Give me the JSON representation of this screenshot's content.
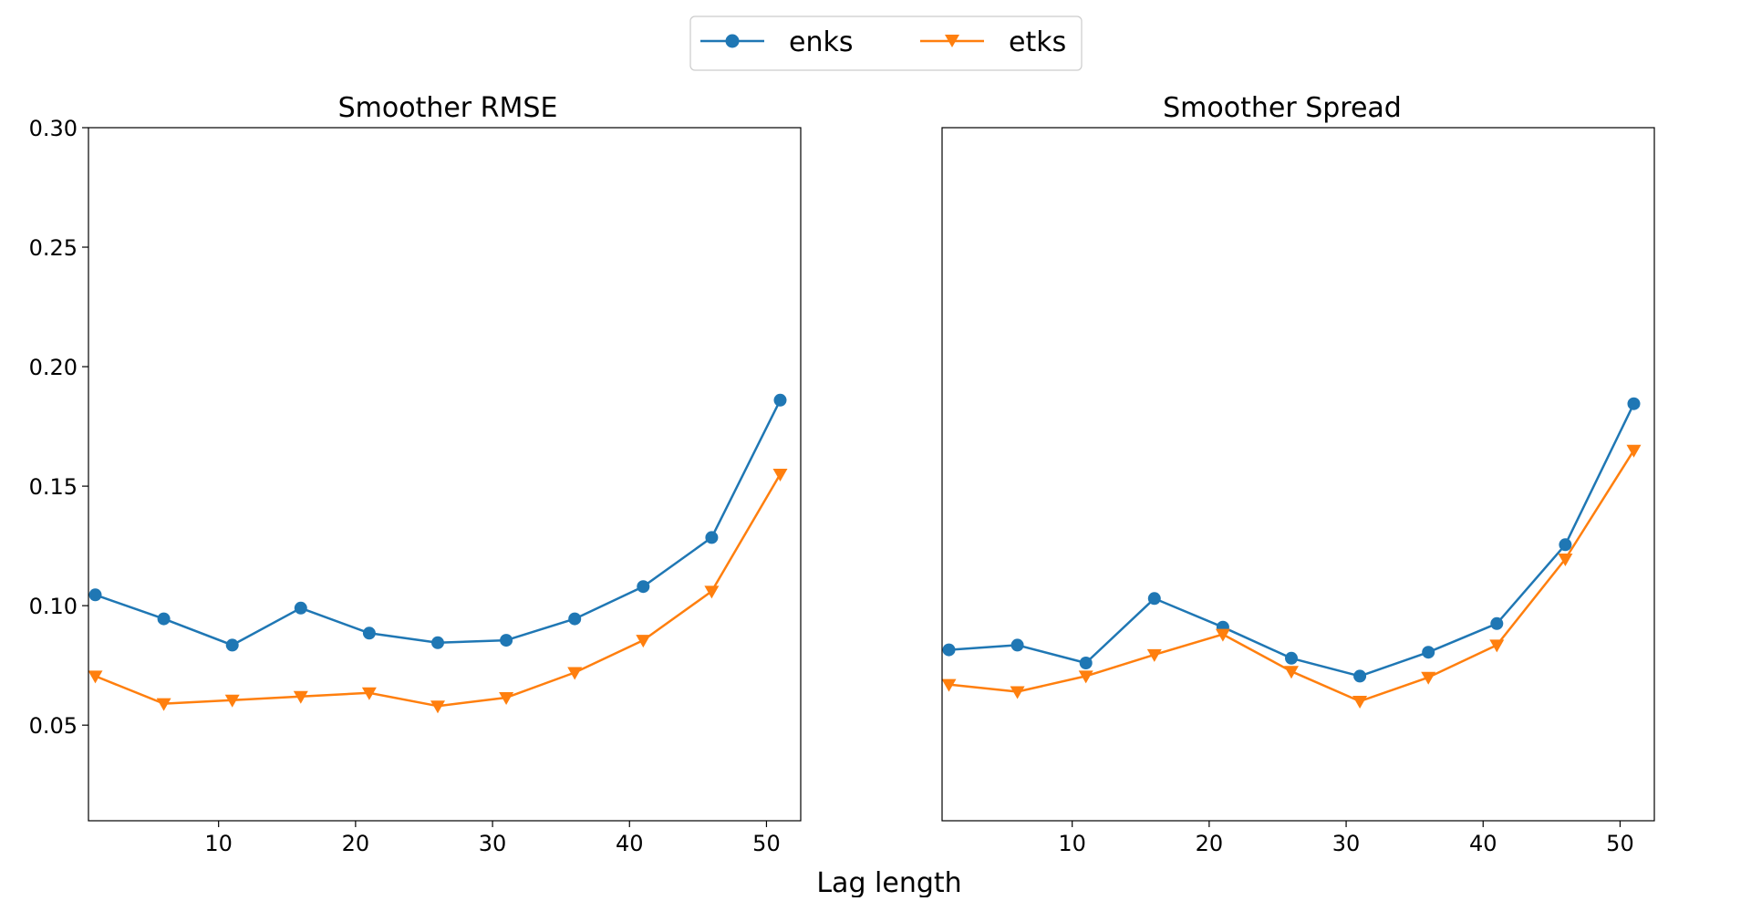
{
  "figure": {
    "xlabel": "Lag length"
  },
  "legend": {
    "placement": "top-center",
    "entries": [
      {
        "label": "enks",
        "color": "#1f77b4",
        "marker": "circle"
      },
      {
        "label": "etks",
        "color": "#ff7f0e",
        "marker": "triangle-down"
      }
    ]
  },
  "chart_data": [
    {
      "type": "line",
      "title": "Smoother RMSE",
      "xlabel": "",
      "ylabel": "",
      "xlim": [
        0.5,
        52.5
      ],
      "ylim": [
        0.01,
        0.3
      ],
      "xticks": [
        10,
        20,
        30,
        40,
        50
      ],
      "yticks": [
        0.05,
        0.1,
        0.15,
        0.2,
        0.25,
        0.3
      ],
      "ytick_labels": [
        "0.05",
        "0.10",
        "0.15",
        "0.20",
        "0.25",
        "0.30"
      ],
      "show_yticks": true,
      "grid": false,
      "x": [
        1,
        6,
        11,
        16,
        21,
        26,
        31,
        36,
        41,
        46,
        51
      ],
      "series": [
        {
          "name": "enks",
          "color": "#1f77b4",
          "marker": "circle",
          "values": [
            0.1045,
            0.0945,
            0.0835,
            0.099,
            0.0885,
            0.0845,
            0.0855,
            0.0945,
            0.108,
            0.1285,
            0.186
          ]
        },
        {
          "name": "etks",
          "color": "#ff7f0e",
          "marker": "triangle-down",
          "values": [
            0.0705,
            0.059,
            0.0605,
            0.062,
            0.0635,
            0.058,
            0.0615,
            0.072,
            0.0855,
            0.106,
            0.155
          ]
        }
      ]
    },
    {
      "type": "line",
      "title": "Smoother Spread",
      "xlabel": "",
      "ylabel": "",
      "xlim": [
        0.5,
        52.5
      ],
      "ylim": [
        0.01,
        0.3
      ],
      "xticks": [
        10,
        20,
        30,
        40,
        50
      ],
      "yticks": [],
      "ytick_labels": [],
      "show_yticks": false,
      "grid": false,
      "x": [
        1,
        6,
        11,
        16,
        21,
        26,
        31,
        36,
        41,
        46,
        51
      ],
      "series": [
        {
          "name": "enks",
          "color": "#1f77b4",
          "marker": "circle",
          "values": [
            0.0815,
            0.0835,
            0.076,
            0.103,
            0.091,
            0.078,
            0.0705,
            0.0805,
            0.0925,
            0.1255,
            0.1845
          ]
        },
        {
          "name": "etks",
          "color": "#ff7f0e",
          "marker": "triangle-down",
          "values": [
            0.067,
            0.064,
            0.0705,
            0.0795,
            0.088,
            0.0725,
            0.06,
            0.07,
            0.0835,
            0.1195,
            0.165
          ]
        }
      ]
    }
  ]
}
